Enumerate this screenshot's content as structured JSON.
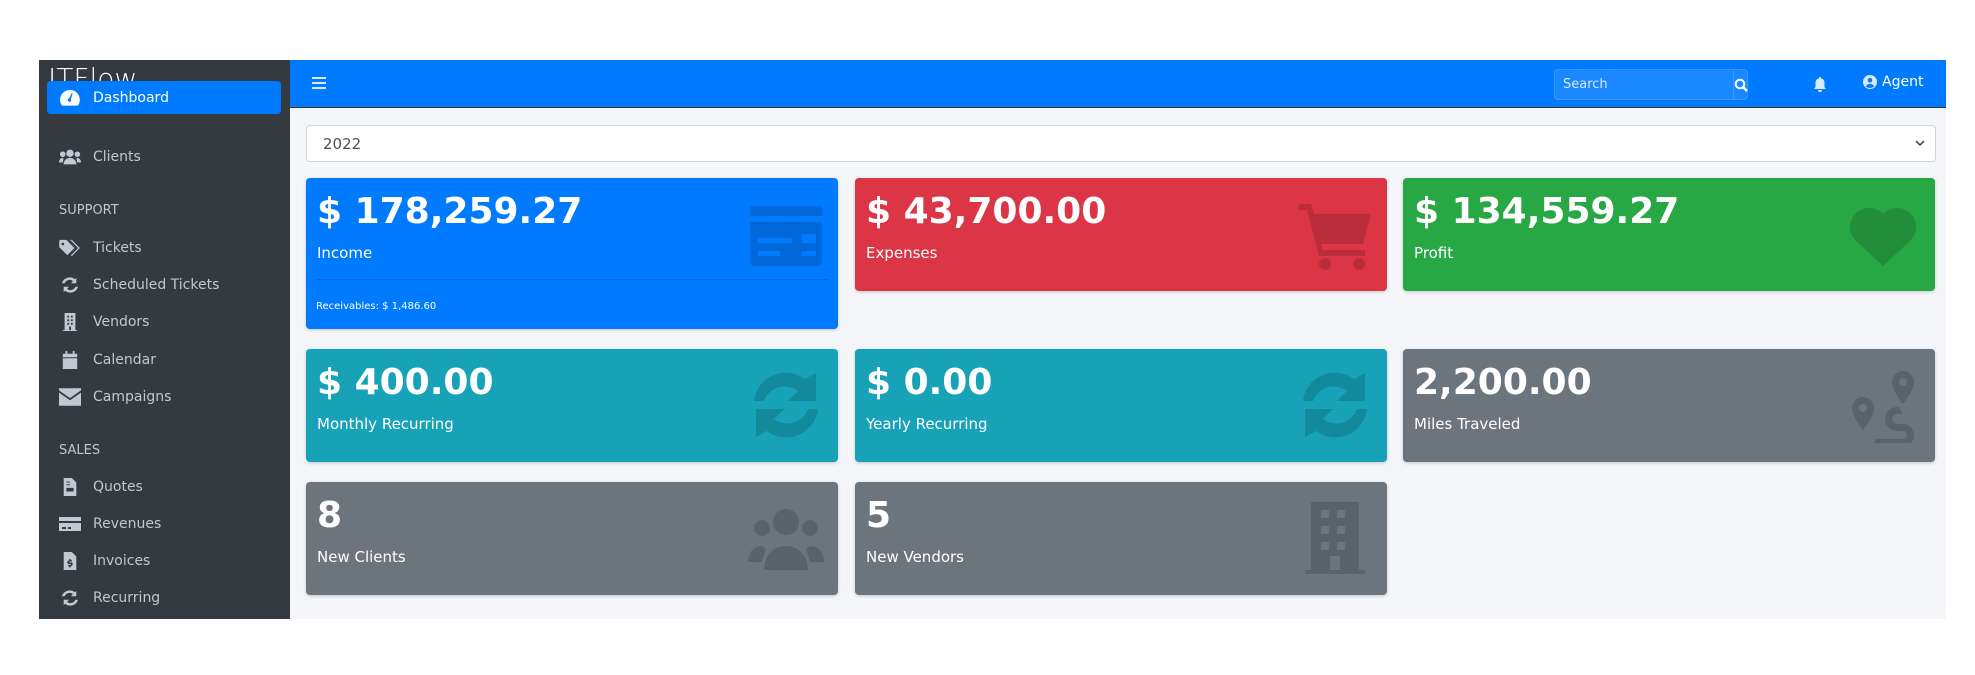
{
  "app": {
    "brand": "ITFlow"
  },
  "sidebar": {
    "items": [
      {
        "label": "Dashboard",
        "icon": "tachometer-icon",
        "active": true
      },
      {
        "label": "Clients",
        "icon": "users-icon"
      }
    ],
    "support_header": "SUPPORT",
    "support": [
      {
        "label": "Tickets",
        "icon": "tags-icon"
      },
      {
        "label": "Scheduled Tickets",
        "icon": "sync-icon"
      },
      {
        "label": "Vendors",
        "icon": "building-icon"
      },
      {
        "label": "Calendar",
        "icon": "calendar-icon"
      },
      {
        "label": "Campaigns",
        "icon": "envelope-icon"
      }
    ],
    "sales_header": "SALES",
    "sales": [
      {
        "label": "Quotes",
        "icon": "file-icon"
      },
      {
        "label": "Revenues",
        "icon": "credit-card-icon"
      },
      {
        "label": "Invoices",
        "icon": "file-invoice-icon"
      },
      {
        "label": "Recurring",
        "icon": "sync-icon"
      }
    ]
  },
  "navbar": {
    "search_placeholder": "Search",
    "user": "Agent"
  },
  "year_select": {
    "value": "2022"
  },
  "cards": [
    {
      "value": "$ 178,259.27",
      "label": "Income",
      "footer": "Receivables: $ 1,486.60",
      "color": "#007bff",
      "icon": "credit-card-icon"
    },
    {
      "value": "$ 43,700.00",
      "label": "Expenses",
      "color": "#dc3545",
      "icon": "shopping-cart-icon"
    },
    {
      "value": "$ 134,559.27",
      "label": "Profit",
      "color": "#28a745",
      "icon": "heart-icon"
    },
    {
      "value": "$ 400.00",
      "label": "Monthly Recurring",
      "color": "#17a2b8",
      "icon": "sync-icon"
    },
    {
      "value": "$ 0.00",
      "label": "Yearly Recurring",
      "color": "#17a2b8",
      "icon": "sync-icon"
    },
    {
      "value": "2,200.00",
      "label": "Miles Traveled",
      "color": "#6c757d",
      "icon": "route-icon"
    },
    {
      "value": "8",
      "label": "New Clients",
      "color": "#6c757d",
      "icon": "users-icon"
    },
    {
      "value": "5",
      "label": "New Vendors",
      "color": "#6c757d",
      "icon": "building-icon"
    }
  ]
}
